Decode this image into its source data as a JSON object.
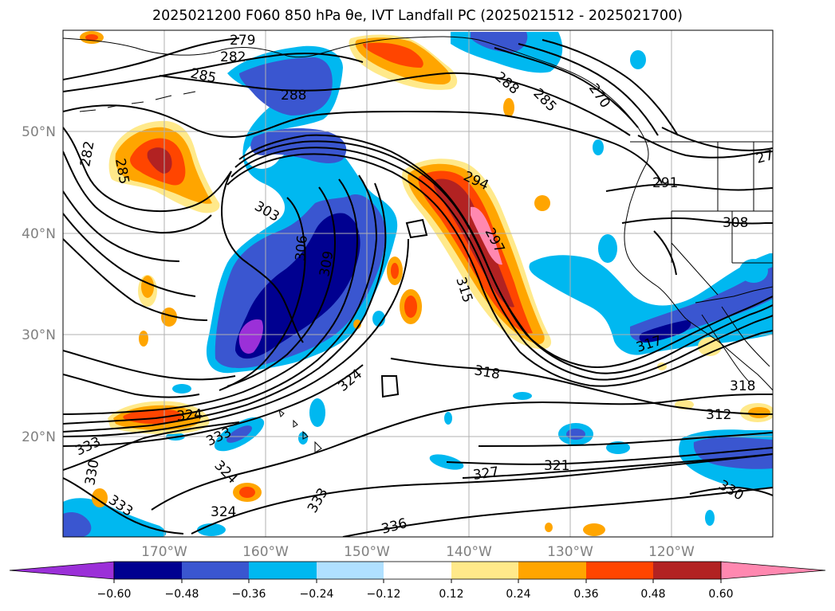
{
  "title": "2025021200 F060 850 hPa θe, IVT Landfall PC (2025021512 - 2025021700)",
  "lat_labels": [
    "50°N",
    "40°N",
    "30°N",
    "20°N"
  ],
  "lon_labels": [
    "170°W",
    "160°W",
    "150°W",
    "140°W",
    "130°W",
    "120°W"
  ],
  "contour_labels": [
    "279",
    "282",
    "285",
    "288",
    "282",
    "285",
    "303",
    "306",
    "309",
    "294",
    "297",
    "315",
    "288",
    "285",
    "270",
    "291",
    "308",
    "318",
    "324",
    "324",
    "333",
    "324",
    "333",
    "330",
    "333",
    "324",
    "333",
    "336",
    "327",
    "321",
    "312",
    "318",
    "330",
    "317",
    "279"
  ],
  "colorbar": {
    "ticks": [
      "−0.60",
      "−0.48",
      "−0.36",
      "−0.24",
      "−0.12",
      "0.12",
      "0.24",
      "0.36",
      "0.48",
      "0.60"
    ],
    "colors": [
      "#9b30d8",
      "#000090",
      "#3a56d0",
      "#00b8f0",
      "#b0e0ff",
      "#ffffff",
      "#ffe98a",
      "#ffa500",
      "#ff4500",
      "#b22222",
      "#ff88b0"
    ]
  },
  "legend_colors": {
    "under": "#9b30d8",
    "over": "#ff88b0"
  }
}
